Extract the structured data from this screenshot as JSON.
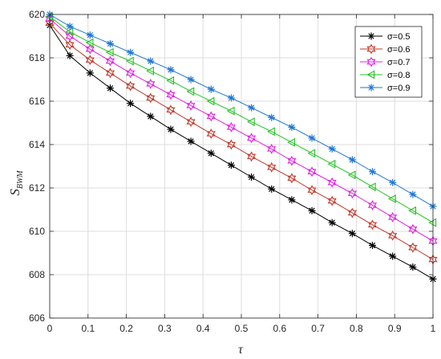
{
  "chart_data": {
    "type": "line",
    "xlabel": "τ",
    "ylabel_main": "S",
    "ylabel_sub": "BWM",
    "xlim": [
      0,
      1
    ],
    "ylim": [
      606,
      620
    ],
    "x_ticks": [
      0,
      0.1,
      0.2,
      0.3,
      0.4,
      0.5,
      0.6,
      0.7,
      0.8,
      0.9,
      1
    ],
    "x_tick_labels": [
      "0",
      "0.1",
      "0.2",
      "0.3",
      "0.4",
      "0.5",
      "0.6",
      "0.7",
      "0.8",
      "0.9",
      "1"
    ],
    "y_ticks": [
      606,
      608,
      610,
      612,
      614,
      616,
      618,
      620
    ],
    "y_tick_labels": [
      "606",
      "608",
      "610",
      "612",
      "614",
      "616",
      "618",
      "620"
    ],
    "grid": true,
    "legend_position": "top-right",
    "x": [
      0,
      0.0526,
      0.1053,
      0.1579,
      0.2105,
      0.2632,
      0.3158,
      0.3684,
      0.4211,
      0.4737,
      0.5263,
      0.5789,
      0.6316,
      0.6842,
      0.7368,
      0.7895,
      0.8421,
      0.8947,
      0.9474,
      1.0
    ],
    "series": [
      {
        "name": "σ=0.5",
        "color": "#000000",
        "marker": "asterisk",
        "values": [
          619.5,
          618.1,
          617.3,
          616.6,
          615.9,
          615.3,
          614.7,
          614.15,
          613.6,
          613.05,
          612.5,
          611.95,
          611.45,
          610.95,
          610.4,
          609.9,
          609.35,
          608.85,
          608.35,
          607.8
        ]
      },
      {
        "name": "σ=0.6",
        "color": "#c0392b",
        "marker": "hexagram",
        "values": [
          619.6,
          618.6,
          617.9,
          617.3,
          616.7,
          616.15,
          615.6,
          615.05,
          614.5,
          614.0,
          613.45,
          612.95,
          612.45,
          611.9,
          611.4,
          610.85,
          610.3,
          609.8,
          609.25,
          608.7
        ]
      },
      {
        "name": "σ=0.7",
        "color": "#e020e0",
        "marker": "hexagram",
        "values": [
          619.8,
          619.0,
          618.4,
          617.85,
          617.3,
          616.8,
          616.3,
          615.8,
          615.3,
          614.8,
          614.3,
          613.8,
          613.25,
          612.75,
          612.25,
          611.75,
          611.2,
          610.65,
          610.1,
          609.55
        ]
      },
      {
        "name": "σ=0.8",
        "color": "#22c222",
        "marker": "triangle-left",
        "values": [
          619.9,
          619.2,
          618.7,
          618.25,
          617.85,
          617.4,
          616.95,
          616.45,
          616.0,
          615.55,
          615.05,
          614.6,
          614.1,
          613.6,
          613.1,
          612.6,
          612.05,
          611.5,
          610.95,
          610.4
        ]
      },
      {
        "name": "σ=0.9",
        "color": "#1f77d0",
        "marker": "asterisk",
        "values": [
          620.0,
          619.45,
          619.05,
          618.65,
          618.25,
          617.85,
          617.45,
          617.0,
          616.55,
          616.15,
          615.7,
          615.25,
          614.8,
          614.3,
          613.8,
          613.3,
          612.75,
          612.25,
          611.7,
          611.15
        ]
      }
    ]
  }
}
